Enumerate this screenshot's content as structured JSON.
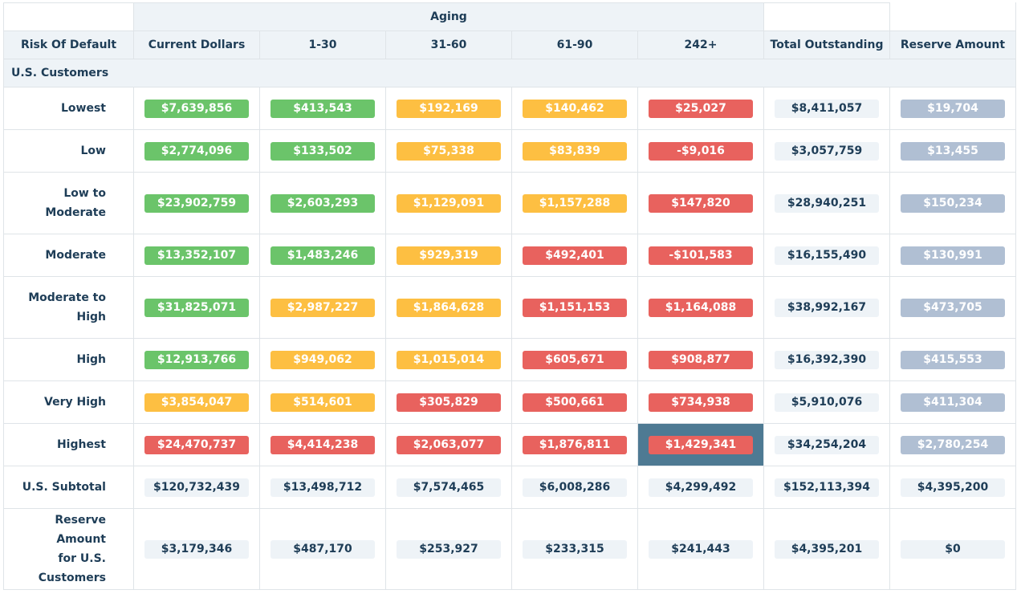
{
  "header": {
    "aging_label": "Aging",
    "columns": [
      "Risk Of Default",
      "Current Dollars",
      "1-30",
      "31-60",
      "61-90",
      "242+",
      "Total Outstanding",
      "Reserve Amount"
    ]
  },
  "section_label": "U.S. Customers",
  "rows": [
    {
      "label": [
        "Lowest"
      ],
      "cells": [
        {
          "v": "$7,639,856",
          "c": "green"
        },
        {
          "v": "$413,543",
          "c": "green"
        },
        {
          "v": "$192,169",
          "c": "yellow"
        },
        {
          "v": "$140,462",
          "c": "yellow"
        },
        {
          "v": "$25,027",
          "c": "red"
        },
        {
          "v": "$8,411,057",
          "c": "light"
        },
        {
          "v": "$19,704",
          "c": "slate"
        }
      ]
    },
    {
      "label": [
        "Low"
      ],
      "cells": [
        {
          "v": "$2,774,096",
          "c": "green"
        },
        {
          "v": "$133,502",
          "c": "green"
        },
        {
          "v": "$75,338",
          "c": "yellow"
        },
        {
          "v": "$83,839",
          "c": "yellow"
        },
        {
          "v": "-$9,016",
          "c": "red"
        },
        {
          "v": "$3,057,759",
          "c": "light"
        },
        {
          "v": "$13,455",
          "c": "slate"
        }
      ]
    },
    {
      "label": [
        "Low to",
        "Moderate"
      ],
      "cells": [
        {
          "v": "$23,902,759",
          "c": "green"
        },
        {
          "v": "$2,603,293",
          "c": "green"
        },
        {
          "v": "$1,129,091",
          "c": "yellow"
        },
        {
          "v": "$1,157,288",
          "c": "yellow"
        },
        {
          "v": "$147,820",
          "c": "red"
        },
        {
          "v": "$28,940,251",
          "c": "light"
        },
        {
          "v": "$150,234",
          "c": "slate"
        }
      ]
    },
    {
      "label": [
        "Moderate"
      ],
      "cells": [
        {
          "v": "$13,352,107",
          "c": "green"
        },
        {
          "v": "$1,483,246",
          "c": "green"
        },
        {
          "v": "$929,319",
          "c": "yellow"
        },
        {
          "v": "$492,401",
          "c": "red"
        },
        {
          "v": "-$101,583",
          "c": "red"
        },
        {
          "v": "$16,155,490",
          "c": "light"
        },
        {
          "v": "$130,991",
          "c": "slate"
        }
      ]
    },
    {
      "label": [
        "Moderate to",
        "High"
      ],
      "cells": [
        {
          "v": "$31,825,071",
          "c": "green"
        },
        {
          "v": "$2,987,227",
          "c": "yellow"
        },
        {
          "v": "$1,864,628",
          "c": "yellow"
        },
        {
          "v": "$1,151,153",
          "c": "red"
        },
        {
          "v": "$1,164,088",
          "c": "red"
        },
        {
          "v": "$38,992,167",
          "c": "light"
        },
        {
          "v": "$473,705",
          "c": "slate"
        }
      ]
    },
    {
      "label": [
        "High"
      ],
      "cells": [
        {
          "v": "$12,913,766",
          "c": "green"
        },
        {
          "v": "$949,062",
          "c": "yellow"
        },
        {
          "v": "$1,015,014",
          "c": "yellow"
        },
        {
          "v": "$605,671",
          "c": "red"
        },
        {
          "v": "$908,877",
          "c": "red"
        },
        {
          "v": "$16,392,390",
          "c": "light"
        },
        {
          "v": "$415,553",
          "c": "slate"
        }
      ]
    },
    {
      "label": [
        "Very High"
      ],
      "cells": [
        {
          "v": "$3,854,047",
          "c": "yellow"
        },
        {
          "v": "$514,601",
          "c": "yellow"
        },
        {
          "v": "$305,829",
          "c": "red"
        },
        {
          "v": "$500,661",
          "c": "red"
        },
        {
          "v": "$734,938",
          "c": "red"
        },
        {
          "v": "$5,910,076",
          "c": "light"
        },
        {
          "v": "$411,304",
          "c": "slate"
        }
      ]
    },
    {
      "label": [
        "Highest"
      ],
      "cells": [
        {
          "v": "$24,470,737",
          "c": "red"
        },
        {
          "v": "$4,414,238",
          "c": "red"
        },
        {
          "v": "$2,063,077",
          "c": "red"
        },
        {
          "v": "$1,876,811",
          "c": "red"
        },
        {
          "v": "$1,429,341",
          "c": "red",
          "selected": true
        },
        {
          "v": "$34,254,204",
          "c": "light"
        },
        {
          "v": "$2,780,254",
          "c": "slate"
        }
      ]
    },
    {
      "label": [
        "U.S. Subtotal"
      ],
      "cells": [
        {
          "v": "$120,732,439",
          "c": "light"
        },
        {
          "v": "$13,498,712",
          "c": "light"
        },
        {
          "v": "$7,574,465",
          "c": "light"
        },
        {
          "v": "$6,008,286",
          "c": "light"
        },
        {
          "v": "$4,299,492",
          "c": "light"
        },
        {
          "v": "$152,113,394",
          "c": "light"
        },
        {
          "v": "$4,395,200",
          "c": "light"
        }
      ]
    },
    {
      "label": [
        "Reserve Amount",
        "for U.S.",
        "Customers"
      ],
      "cells": [
        {
          "v": "$3,179,346",
          "c": "light"
        },
        {
          "v": "$487,170",
          "c": "light"
        },
        {
          "v": "$253,927",
          "c": "light"
        },
        {
          "v": "$233,315",
          "c": "light"
        },
        {
          "v": "$241,443",
          "c": "light"
        },
        {
          "v": "$4,395,201",
          "c": "light"
        },
        {
          "v": "$0",
          "c": "light"
        }
      ]
    }
  ],
  "colors": {
    "green": "#6bc46a",
    "yellow": "#fdbf42",
    "red": "#e8625e",
    "light": "#eef3f7",
    "slate": "#b0bfd3",
    "selected": "#4e7a93",
    "text": "#1e3d57"
  }
}
